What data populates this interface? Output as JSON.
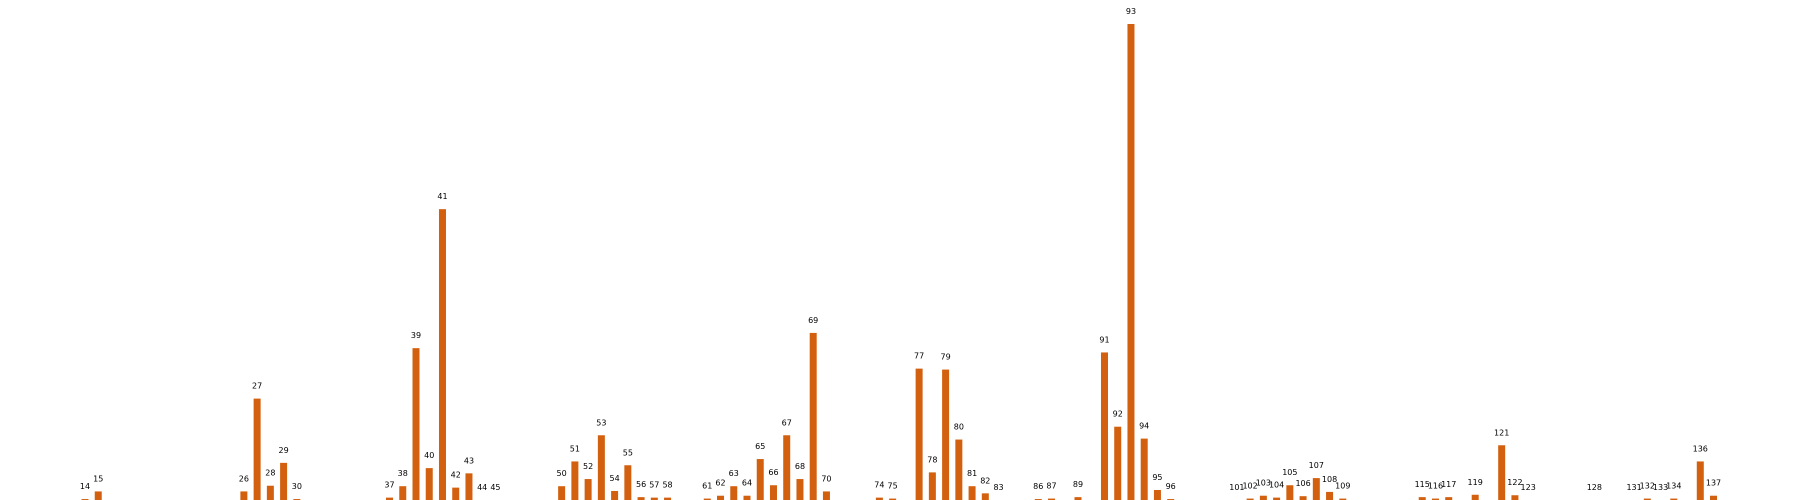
{
  "chart_data": {
    "type": "bar",
    "title": "",
    "xlabel": "",
    "ylabel": "",
    "axes_visible": false,
    "grid": false,
    "color": "#d2600f",
    "ylim": [
      0,
      100
    ],
    "xlim": [
      0,
      140
    ],
    "bars": [
      {
        "x": 14,
        "value": 0.2
      },
      {
        "x": 15,
        "value": 1.8
      },
      {
        "x": 26,
        "value": 1.8
      },
      {
        "x": 27,
        "value": 21.3
      },
      {
        "x": 28,
        "value": 3.0
      },
      {
        "x": 29,
        "value": 7.8
      },
      {
        "x": 30,
        "value": 0.2
      },
      {
        "x": 37,
        "value": 0.5
      },
      {
        "x": 38,
        "value": 2.9
      },
      {
        "x": 39,
        "value": 31.9
      },
      {
        "x": 40,
        "value": 6.7
      },
      {
        "x": 41,
        "value": 61.1
      },
      {
        "x": 42,
        "value": 2.6
      },
      {
        "x": 43,
        "value": 5.6
      },
      {
        "x": 44,
        "value": 0.0
      },
      {
        "x": 45,
        "value": 0.0
      },
      {
        "x": 50,
        "value": 2.9
      },
      {
        "x": 51,
        "value": 8.1
      },
      {
        "x": 52,
        "value": 4.4
      },
      {
        "x": 53,
        "value": 13.6
      },
      {
        "x": 54,
        "value": 1.9
      },
      {
        "x": 55,
        "value": 7.3
      },
      {
        "x": 56,
        "value": 0.6
      },
      {
        "x": 57,
        "value": 0.5
      },
      {
        "x": 58,
        "value": 0.5
      },
      {
        "x": 61,
        "value": 0.3
      },
      {
        "x": 62,
        "value": 0.9
      },
      {
        "x": 63,
        "value": 2.9
      },
      {
        "x": 64,
        "value": 0.9
      },
      {
        "x": 65,
        "value": 8.6
      },
      {
        "x": 66,
        "value": 3.1
      },
      {
        "x": 67,
        "value": 13.6
      },
      {
        "x": 68,
        "value": 4.4
      },
      {
        "x": 69,
        "value": 35.1
      },
      {
        "x": 70,
        "value": 1.8
      },
      {
        "x": 74,
        "value": 0.5
      },
      {
        "x": 75,
        "value": 0.3
      },
      {
        "x": 77,
        "value": 27.6
      },
      {
        "x": 78,
        "value": 5.8
      },
      {
        "x": 79,
        "value": 27.4
      },
      {
        "x": 80,
        "value": 12.7
      },
      {
        "x": 81,
        "value": 2.9
      },
      {
        "x": 82,
        "value": 1.4
      },
      {
        "x": 83,
        "value": 0.0
      },
      {
        "x": 86,
        "value": 0.2
      },
      {
        "x": 87,
        "value": 0.3
      },
      {
        "x": 89,
        "value": 0.6
      },
      {
        "x": 91,
        "value": 31.0
      },
      {
        "x": 92,
        "value": 15.4
      },
      {
        "x": 93,
        "value": 100.0
      },
      {
        "x": 94,
        "value": 12.9
      },
      {
        "x": 95,
        "value": 2.1
      },
      {
        "x": 96,
        "value": 0.2
      },
      {
        "x": 101,
        "value": 0.0
      },
      {
        "x": 102,
        "value": 0.3
      },
      {
        "x": 103,
        "value": 0.9
      },
      {
        "x": 104,
        "value": 0.5
      },
      {
        "x": 105,
        "value": 3.1
      },
      {
        "x": 106,
        "value": 0.8
      },
      {
        "x": 107,
        "value": 4.6
      },
      {
        "x": 108,
        "value": 1.7
      },
      {
        "x": 109,
        "value": 0.3
      },
      {
        "x": 115,
        "value": 0.6
      },
      {
        "x": 116,
        "value": 0.3
      },
      {
        "x": 117,
        "value": 0.6
      },
      {
        "x": 119,
        "value": 1.1
      },
      {
        "x": 121,
        "value": 11.5
      },
      {
        "x": 122,
        "value": 1.0
      },
      {
        "x": 123,
        "value": 0.0
      },
      {
        "x": 128,
        "value": 0.0
      },
      {
        "x": 131,
        "value": 0.0
      },
      {
        "x": 132,
        "value": 0.3
      },
      {
        "x": 133,
        "value": 0.0
      },
      {
        "x": 134,
        "value": 0.3
      },
      {
        "x": 136,
        "value": 8.1
      },
      {
        "x": 137,
        "value": 0.9
      }
    ]
  }
}
